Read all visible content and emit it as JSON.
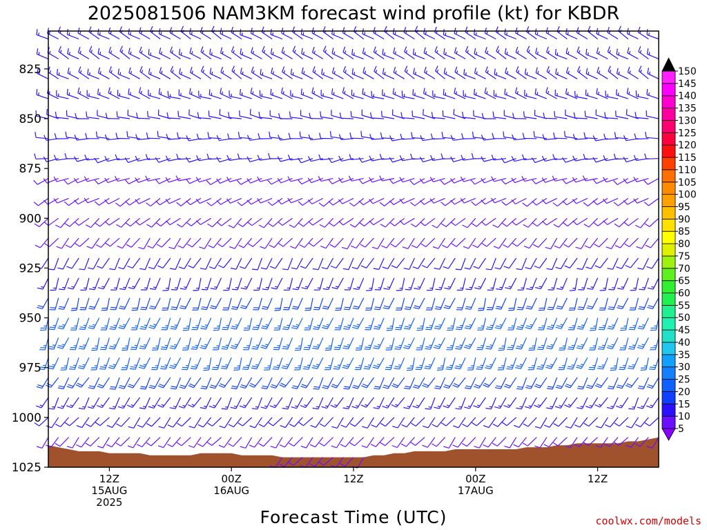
{
  "chart_data": {
    "type": "wind-barb time-height",
    "title": "2025081506 NAM3KM forecast wind profile (kt) for KBDR",
    "xlabel": "Forecast Time (UTC)",
    "credit": "coolwx.com/models",
    "y_ticks": [
      825,
      850,
      875,
      900,
      925,
      950,
      975,
      1000,
      1025
    ],
    "ylim": [
      1025,
      806
    ],
    "x_ticks": [
      {
        "hour": 6,
        "lines": [
          "12Z",
          "15AUG",
          "2025"
        ]
      },
      {
        "hour": 18,
        "lines": [
          "00Z",
          "16AUG"
        ]
      },
      {
        "hour": 30,
        "lines": [
          "12Z"
        ]
      },
      {
        "hour": 42,
        "lines": [
          "00Z",
          "17AUG"
        ]
      },
      {
        "hour": 54,
        "lines": [
          "12Z"
        ]
      }
    ],
    "x_range_hours": [
      0,
      60
    ],
    "colorbar": {
      "levels": [
        5,
        10,
        15,
        20,
        25,
        30,
        35,
        40,
        45,
        50,
        55,
        60,
        65,
        70,
        75,
        80,
        85,
        90,
        95,
        100,
        105,
        110,
        115,
        120,
        125,
        130,
        135,
        140,
        145,
        150
      ],
      "colors": [
        "#8a00ff",
        "#6a10ff",
        "#2a10ff",
        "#1040ff",
        "#1060ff",
        "#1580ff",
        "#10a0ff",
        "#20c8f0",
        "#20e0c8",
        "#20f0b0",
        "#20f090",
        "#20f050",
        "#30f030",
        "#60f020",
        "#a0f010",
        "#e0f000",
        "#ffff00",
        "#ffe000",
        "#ffc000",
        "#ffa000",
        "#ff8c00",
        "#ff7000",
        "#ff4000",
        "#ff1010",
        "#ff0040",
        "#ff0070",
        "#ff00a0",
        "#ff00d0",
        "#ff00ff",
        "#ff20ff"
      ],
      "top_arrow_color": "#000000",
      "bottom_arrow_color": "#8a00ff"
    },
    "barbs": {
      "time_step_hours": 1,
      "pressure_levels": [
        810,
        820,
        830,
        840,
        850,
        860,
        870,
        880,
        890,
        900,
        910,
        920,
        930,
        940,
        950,
        960,
        970,
        980,
        990,
        1000,
        1010,
        1020
      ],
      "direction_deg_by_level": [
        300,
        300,
        300,
        290,
        280,
        270,
        260,
        250,
        240,
        230,
        220,
        210,
        200,
        200,
        200,
        200,
        200,
        210,
        210,
        220,
        220,
        220
      ],
      "speed_kt_by_level": [
        15,
        15,
        15,
        15,
        12,
        12,
        12,
        10,
        10,
        10,
        10,
        12,
        15,
        20,
        25,
        25,
        25,
        20,
        15,
        12,
        10,
        10
      ]
    },
    "terrain": {
      "color": "#a0522d",
      "surface_pressure_by_hour": [
        1014,
        1015,
        1016,
        1017,
        1017,
        1017,
        1018,
        1018,
        1018,
        1018,
        1019,
        1019,
        1019,
        1019,
        1019,
        1018,
        1018,
        1018,
        1018,
        1019,
        1019,
        1019,
        1019,
        1020,
        1020,
        1020,
        1020,
        1020,
        1020,
        1020,
        1020,
        1020,
        1019,
        1019,
        1018,
        1018,
        1017,
        1017,
        1017,
        1017,
        1016,
        1016,
        1016,
        1016,
        1016,
        1016,
        1016,
        1015,
        1015,
        1015,
        1014,
        1014,
        1013,
        1013,
        1013,
        1013,
        1013,
        1012,
        1012,
        1011,
        1010
      ]
    }
  }
}
